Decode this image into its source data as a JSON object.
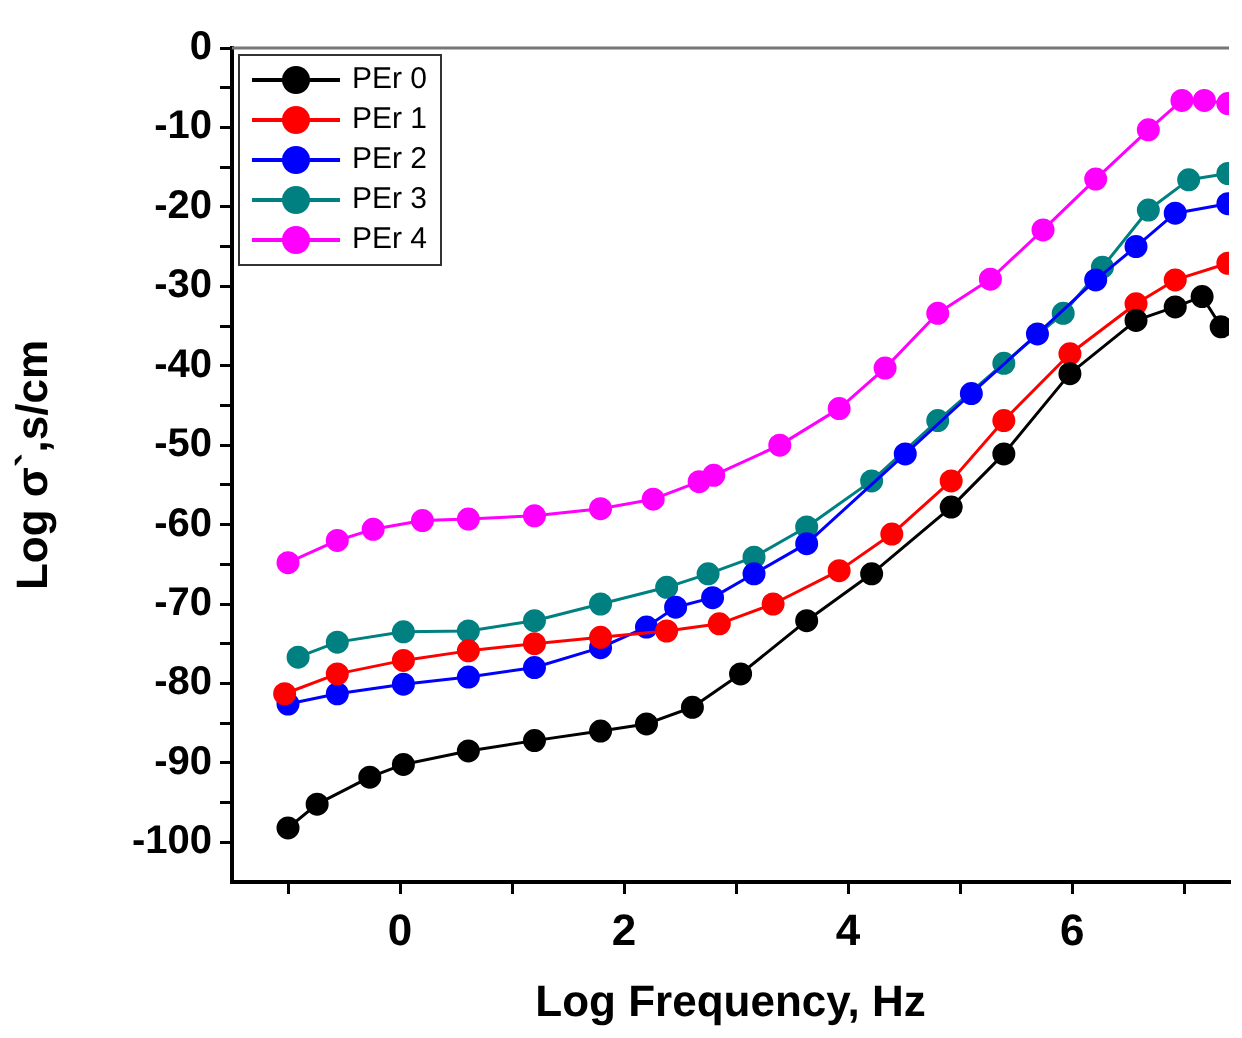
{
  "chart_data": {
    "type": "line",
    "xlabel": "Log Frequency, Hz",
    "ylabel": "Log σ`,s/cm",
    "xlim": [
      -1.5,
      7.4
    ],
    "ylim": [
      -105,
      0
    ],
    "xticks": [
      {
        "value": -1,
        "label": null
      },
      0,
      {
        "value": 1,
        "label": null
      },
      2,
      {
        "value": 3,
        "label": null
      },
      4,
      {
        "value": 5,
        "label": null
      },
      6,
      {
        "value": 7,
        "label": null
      }
    ],
    "yticks": [
      -100,
      {
        "value": -95,
        "label": null
      },
      -90,
      {
        "value": -85,
        "label": null
      },
      -80,
      {
        "value": -75,
        "label": null
      },
      -70,
      {
        "value": -65,
        "label": null
      },
      -60,
      {
        "value": -55,
        "label": null
      },
      -50,
      {
        "value": -45,
        "label": null
      },
      -40,
      {
        "value": -35,
        "label": null
      },
      -30,
      {
        "value": -25,
        "label": null
      },
      -20,
      {
        "value": -15,
        "label": null
      },
      -10,
      {
        "value": -5,
        "label": null
      },
      0
    ],
    "grid": false,
    "legend": "top left",
    "marker": "circle",
    "line_style": "solid",
    "series": [
      {
        "name": "PEr 0",
        "color": "#000000",
        "x": [
          -1.0,
          -0.74,
          -0.27,
          0.03,
          0.61,
          1.2,
          1.79,
          2.2,
          2.61,
          3.04,
          3.63,
          4.21,
          4.92,
          5.39,
          5.98,
          6.57,
          6.92,
          7.16,
          7.33
        ],
        "values": [
          -98.2,
          -95.2,
          -91.8,
          -90.2,
          -88.5,
          -87.2,
          -86,
          -85.1,
          -83,
          -78.8,
          -72.1,
          -66.2,
          -57.8,
          -51.1,
          -41,
          -34.3,
          -32.6,
          -31.3,
          -35.1
        ]
      },
      {
        "name": "PEr 1",
        "color": "#ff0000",
        "x": [
          -1.03,
          -0.56,
          0.03,
          0.61,
          1.2,
          1.79,
          2.38,
          2.85,
          3.33,
          3.92,
          4.39,
          4.92,
          5.39,
          5.98,
          6.57,
          6.92,
          7.39
        ],
        "values": [
          -81.3,
          -78.8,
          -77.1,
          -75.9,
          -75,
          -74.2,
          -73.4,
          -72.5,
          -70,
          -65.8,
          -61.2,
          -54.5,
          -46.9,
          -38.5,
          -32.2,
          -29.2,
          -27.1
        ]
      },
      {
        "name": "PEr 2",
        "color": "#0000ff",
        "x": [
          -1.0,
          -0.56,
          0.03,
          0.61,
          1.2,
          1.79,
          2.2,
          2.46,
          2.79,
          3.16,
          3.63,
          4.51,
          5.1,
          5.69,
          6.21,
          6.57,
          6.92,
          7.39
        ],
        "values": [
          -82.6,
          -81.3,
          -80.1,
          -79.2,
          -78,
          -75.5,
          -72.9,
          -70.4,
          -69.2,
          -66.2,
          -62.4,
          -51.1,
          -43.5,
          -36,
          -29.2,
          -25,
          -20.8,
          -19.6
        ]
      },
      {
        "name": "PEr 3",
        "color": "#008080",
        "x": [
          -0.91,
          -0.56,
          0.03,
          0.61,
          1.2,
          1.79,
          2.38,
          2.75,
          3.16,
          3.63,
          4.21,
          4.8,
          5.39,
          5.92,
          6.27,
          6.68,
          7.04,
          7.39
        ],
        "values": [
          -76.7,
          -74.8,
          -73.5,
          -73.4,
          -72.1,
          -70,
          -67.9,
          -66.2,
          -64.1,
          -60.3,
          -54.5,
          -46.9,
          -39.7,
          -33.4,
          -27.6,
          -20.4,
          -16.6,
          -15.8
        ]
      },
      {
        "name": "PEr 4",
        "color": "#ff00ff",
        "x": [
          -1.0,
          -0.56,
          -0.24,
          0.2,
          0.61,
          1.2,
          1.79,
          2.26,
          2.67,
          2.8,
          3.39,
          3.92,
          4.33,
          4.8,
          5.27,
          5.74,
          6.21,
          6.68,
          6.98,
          7.18,
          7.39
        ],
        "values": [
          -64.8,
          -62,
          -60.6,
          -59.5,
          -59.3,
          -58.9,
          -58,
          -56.8,
          -54.6,
          -53.8,
          -50,
          -45.4,
          -40.3,
          -33.4,
          -29.1,
          -22.9,
          -16.5,
          -10.3,
          -6.6,
          -6.6,
          -7
        ]
      }
    ]
  }
}
